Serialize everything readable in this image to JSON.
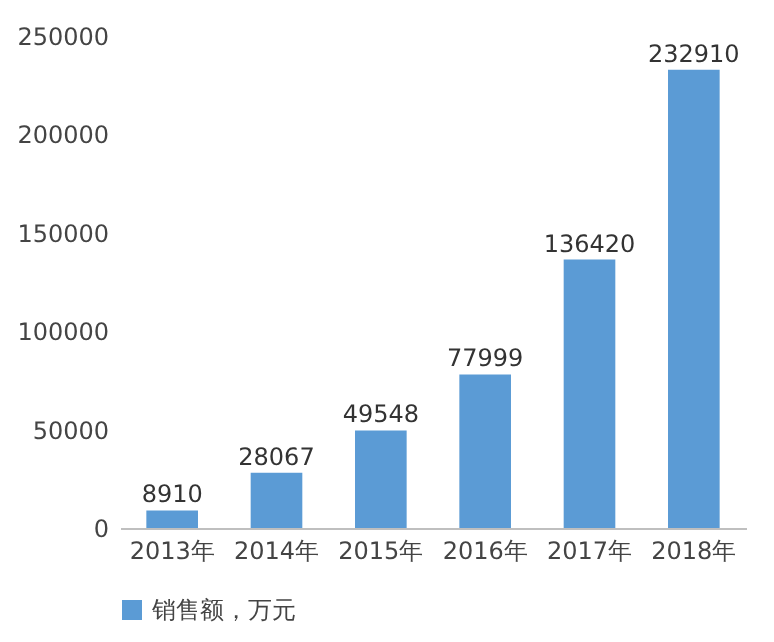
{
  "chart_data": {
    "type": "bar",
    "categories": [
      "2013年",
      "2014年",
      "2015年",
      "2016年",
      "2017年",
      "2018年"
    ],
    "series": [
      {
        "name": "销售额，万元",
        "color": "#5b9bd5",
        "values": [
          8910,
          28067,
          49548,
          77999,
          136420,
          232910
        ]
      }
    ],
    "ylim": [
      0,
      250000
    ],
    "yticks": [
      0,
      50000,
      100000,
      150000,
      200000,
      250000
    ],
    "grid": false,
    "legend": "bottom",
    "data_labels": true
  }
}
